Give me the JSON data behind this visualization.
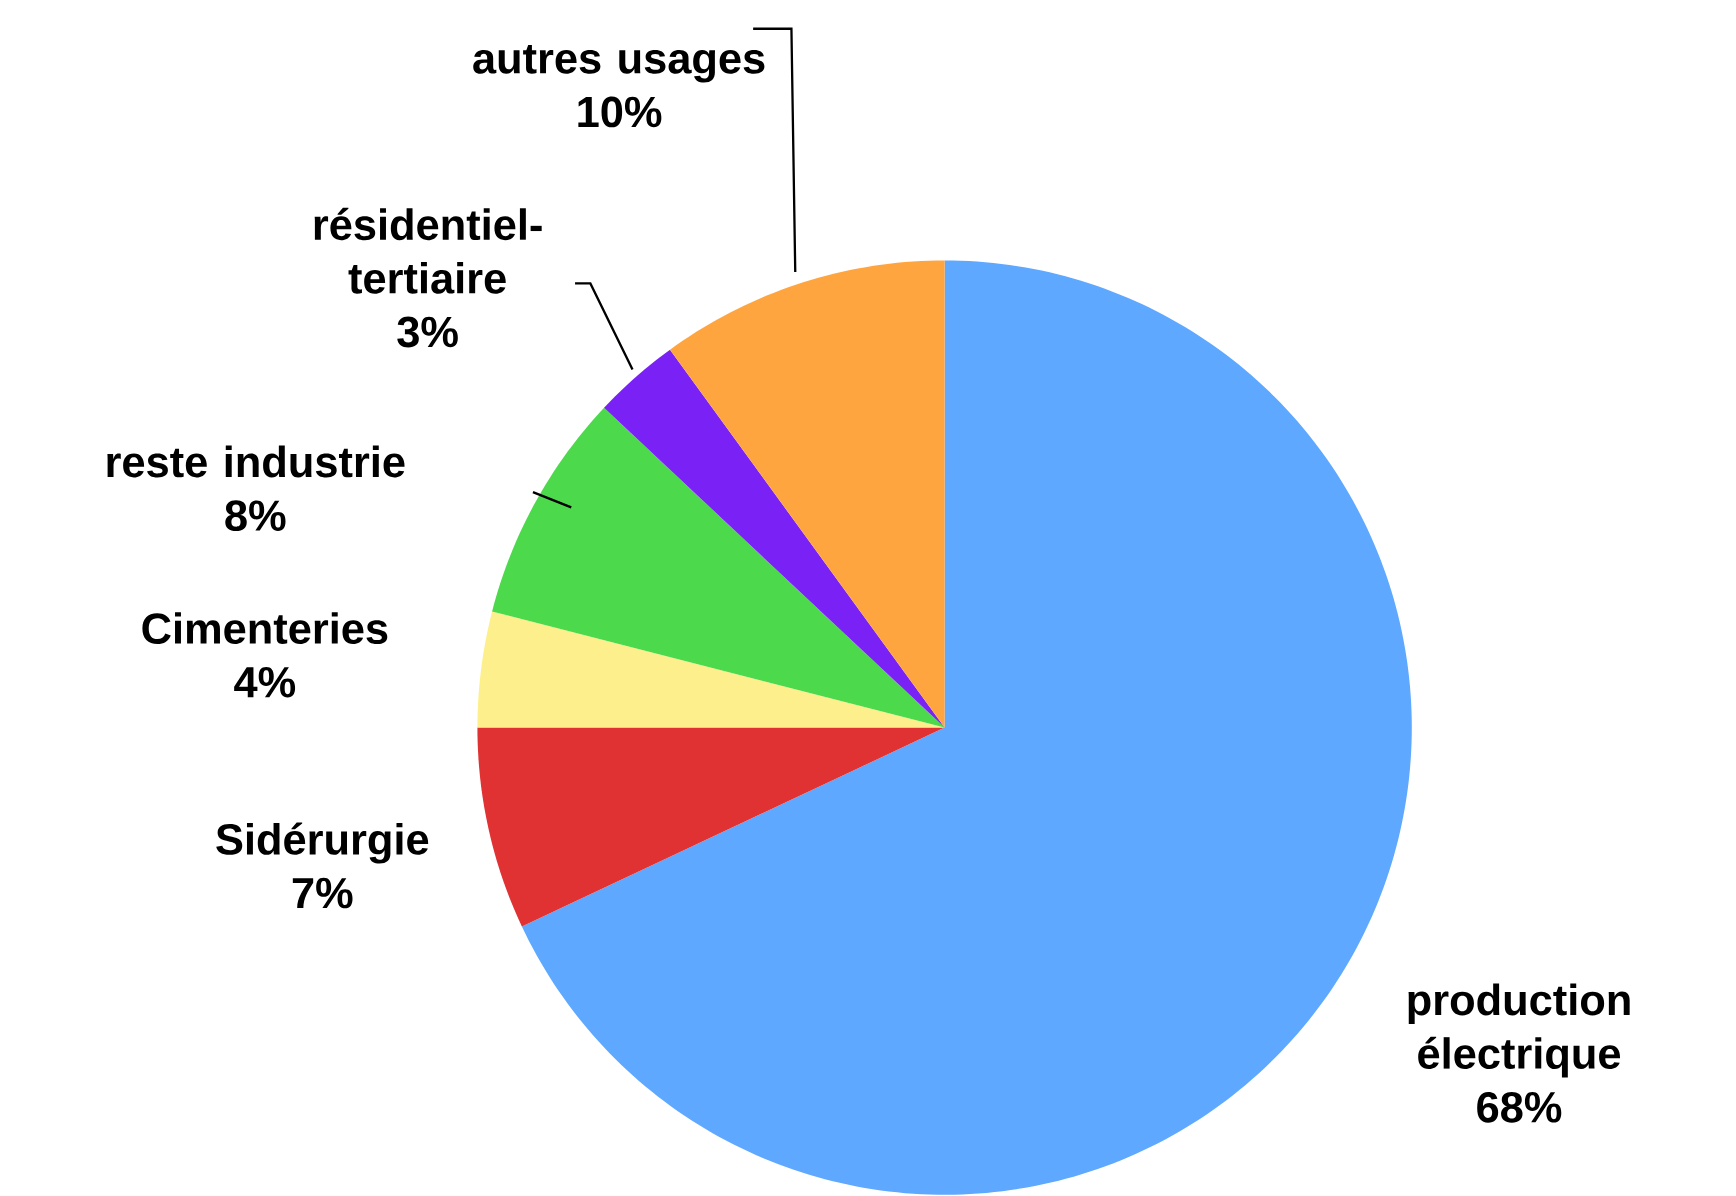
{
  "chart_data": {
    "type": "pie",
    "categories": [
      "production électrique",
      "Sidérurgie",
      "Cimenteries",
      "reste industrie",
      "résidentiel-tertiaire",
      "autres usages"
    ],
    "values": [
      68,
      7,
      4,
      8,
      3,
      10
    ],
    "value_labels": [
      "68%",
      "7%",
      "4%",
      "8%",
      "3%",
      "10%"
    ],
    "colors": [
      "#5fa8ff",
      "#e03232",
      "#fdf08c",
      "#4cd94c",
      "#7a22f5",
      "#ffa540"
    ]
  }
}
